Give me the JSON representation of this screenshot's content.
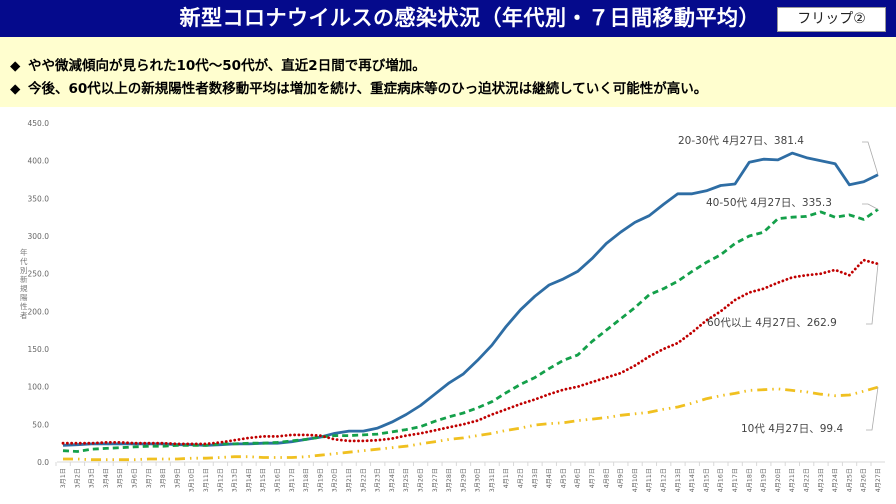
{
  "header": {
    "title": "新型コロナウイルスの感染状況（年代別・７日間移動平均）",
    "flip_label": "フリップ②"
  },
  "notes": {
    "bullet": "◆",
    "items": [
      "やや微減傾向が見られた10代～50代が、直近2日間で再び増加。",
      "今後、60代以上の新規陽性者数移動平均は増加を続け、重症病床等のひっ迫状況は継続していく可能性が高い。"
    ]
  },
  "chart_data": {
    "type": "line",
    "title": "",
    "xlabel": "",
    "ylabel": "年代別新規陽性者",
    "ylim": [
      0,
      450
    ],
    "yticks": [
      "0.0",
      "50.0",
      "100.0",
      "150.0",
      "200.0",
      "250.0",
      "300.0",
      "350.0",
      "400.0",
      "450.0"
    ],
    "grid": false,
    "categories": [
      "3月1日",
      "3月2日",
      "3月3日",
      "3月4日",
      "3月5日",
      "3月6日",
      "3月7日",
      "3月8日",
      "3月9日",
      "3月10日",
      "3月11日",
      "3月12日",
      "3月13日",
      "3月14日",
      "3月15日",
      "3月16日",
      "3月17日",
      "3月18日",
      "3月19日",
      "3月20日",
      "3月21日",
      "3月22日",
      "3月23日",
      "3月24日",
      "3月25日",
      "3月26日",
      "3月27日",
      "3月28日",
      "3月29日",
      "3月30日",
      "3月31日",
      "4月1日",
      "4月2日",
      "4月3日",
      "4月4日",
      "4月5日",
      "4月6日",
      "4月7日",
      "4月8日",
      "4月9日",
      "4月10日",
      "4月11日",
      "4月12日",
      "4月13日",
      "4月14日",
      "4月15日",
      "4月16日",
      "4月17日",
      "4月18日",
      "4月19日",
      "4月20日",
      "4月21日",
      "4月22日",
      "4月23日",
      "4月24日",
      "4月25日",
      "4月26日",
      "4月27日"
    ],
    "series": [
      {
        "name": "20-30代",
        "color": "#2e6da4",
        "style": "solid",
        "annotation": "20-30代  4月27日、381.4",
        "values": [
          22,
          23,
          24,
          24,
          24,
          24,
          24,
          24,
          23,
          23,
          22,
          23,
          24,
          24,
          25,
          25,
          27,
          30,
          33,
          38,
          41,
          41,
          45,
          53,
          63,
          75,
          90,
          105,
          117,
          135,
          155,
          180,
          202,
          220,
          235,
          243,
          253,
          270,
          290,
          305,
          318,
          327,
          342,
          356,
          356,
          360,
          367,
          369,
          398,
          402,
          401,
          410,
          404,
          400,
          396,
          368,
          372,
          381.4
        ]
      },
      {
        "name": "40-50代",
        "color": "#14a04a",
        "style": "dashed",
        "annotation": "40-50代  4月27日、335.3",
        "values": [
          15,
          14,
          17,
          18,
          19,
          20,
          21,
          21,
          22,
          22,
          22,
          24,
          24,
          25,
          25,
          26,
          28,
          30,
          33,
          35,
          35,
          36,
          37,
          40,
          43,
          47,
          54,
          60,
          65,
          72,
          80,
          92,
          103,
          112,
          124,
          135,
          142,
          160,
          175,
          190,
          205,
          222,
          230,
          240,
          253,
          265,
          275,
          290,
          300,
          305,
          323,
          325,
          326,
          332,
          325,
          328,
          322,
          335.3
        ]
      },
      {
        "name": "60代以上",
        "color": "#c00000",
        "style": "dotted",
        "annotation": "60代以上  4月27日、262.9",
        "values": [
          25,
          25,
          25,
          26,
          26,
          25,
          25,
          25,
          24,
          24,
          24,
          26,
          29,
          32,
          34,
          34,
          36,
          36,
          35,
          30,
          28,
          28,
          29,
          31,
          35,
          38,
          42,
          46,
          50,
          55,
          63,
          70,
          77,
          83,
          90,
          96,
          100,
          106,
          112,
          118,
          128,
          140,
          150,
          158,
          172,
          188,
          200,
          215,
          225,
          230,
          238,
          245,
          248,
          250,
          255,
          248,
          268,
          262.9
        ]
      },
      {
        "name": "10代",
        "color": "#f0c020",
        "style": "dashdot",
        "annotation": "10代  4月27日、99.4",
        "values": [
          4,
          4,
          3,
          3,
          3,
          3,
          4,
          4,
          4,
          5,
          5,
          6,
          7,
          7,
          6,
          6,
          6,
          7,
          9,
          11,
          13,
          15,
          17,
          19,
          21,
          24,
          27,
          30,
          32,
          35,
          38,
          42,
          45,
          49,
          51,
          52,
          55,
          57,
          59,
          62,
          64,
          66,
          70,
          73,
          78,
          84,
          88,
          91,
          95,
          96,
          97,
          95,
          93,
          90,
          88,
          89,
          94,
          99.4
        ]
      }
    ]
  }
}
